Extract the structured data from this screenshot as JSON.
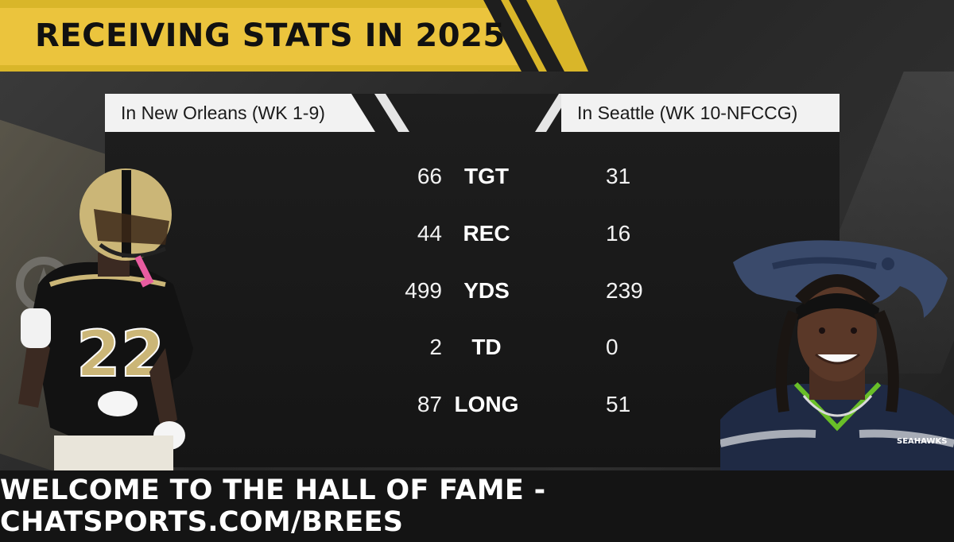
{
  "title": "RECEIVING STATS IN 2025",
  "teams": {
    "left": "In New Orleans (WK 1-9)",
    "right": "In Seattle (WK 10-NFCCG)"
  },
  "stats": [
    {
      "label": "TGT",
      "left": "66",
      "right": "31"
    },
    {
      "label": "REC",
      "left": "44",
      "right": "16"
    },
    {
      "label": "YDS",
      "left": "499",
      "right": "239"
    },
    {
      "label": "TD",
      "left": "2",
      "right": "0"
    },
    {
      "label": "LONG",
      "left": "87",
      "right": "51"
    }
  ],
  "players": {
    "left": {
      "jersey_number": "22",
      "jersey_colors": {
        "base": "#111111",
        "trim": "#cbb677"
      }
    },
    "right": {
      "jersey_text": "SEAHAWKS",
      "jersey_colors": {
        "base": "#1f2a44",
        "trim": "#69be28"
      }
    }
  },
  "colors": {
    "banner_yellow": "#ebc43d",
    "panel_dark": "#1a1a1a",
    "header_light": "#f2f2f2"
  },
  "footer": "WELCOME TO THE HALL OF FAME - CHATSPORTS.COM/BREES"
}
